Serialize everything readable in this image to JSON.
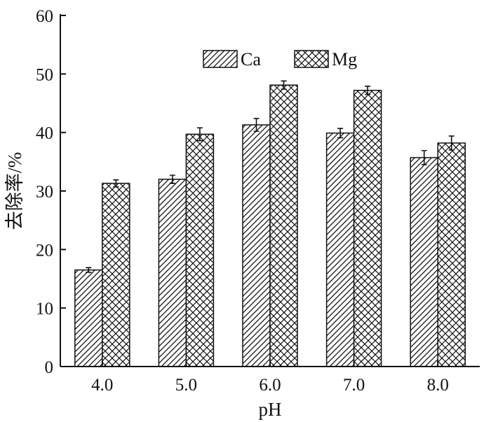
{
  "chart_data": {
    "type": "bar",
    "title": "",
    "xlabel": "pH",
    "ylabel": "去除率/%",
    "categories": [
      "4.0",
      "5.0",
      "6.0",
      "7.0",
      "8.0"
    ],
    "ylim": [
      0,
      60
    ],
    "yticks": [
      "0",
      "10",
      "20",
      "30",
      "40",
      "50",
      "60"
    ],
    "grid": false,
    "legend_position": "top-center",
    "series": [
      {
        "name": "Ca",
        "pattern": "diagonal-hatch",
        "values": [
          16.5,
          32.0,
          41.3,
          39.9,
          35.7
        ],
        "errors": [
          0.4,
          0.7,
          1.1,
          0.8,
          1.2
        ]
      },
      {
        "name": "Mg",
        "pattern": "cross-hatch",
        "values": [
          31.3,
          39.7,
          48.1,
          47.2,
          38.2
        ],
        "errors": [
          0.6,
          1.1,
          0.7,
          0.7,
          1.2
        ]
      }
    ],
    "colors": {
      "bar_fill": "#ffffff",
      "stroke": "#111111"
    }
  }
}
